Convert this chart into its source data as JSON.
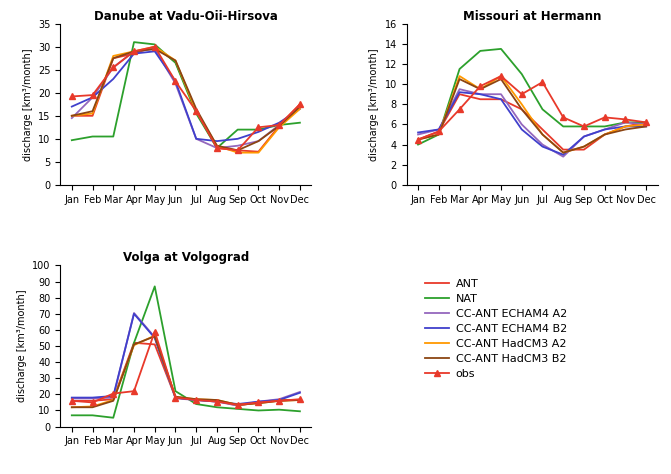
{
  "months": [
    "Jan",
    "Feb",
    "Mar",
    "Apr",
    "May",
    "Jun",
    "Jul",
    "Aug",
    "Sep",
    "Oct",
    "Nov",
    "Dec"
  ],
  "danube": {
    "title": "Danube at Vadu-Oii-Hirsova",
    "ylabel": "discharge [km³/month]",
    "ylim": [
      0,
      35
    ],
    "yticks": [
      0,
      5,
      10,
      15,
      20,
      25,
      30,
      35
    ],
    "ANT": [
      15.0,
      15.0,
      27.5,
      28.5,
      30.0,
      26.7,
      16.0,
      8.0,
      7.5,
      7.2,
      12.8,
      17.5
    ],
    "NAT": [
      9.7,
      10.5,
      10.5,
      31.0,
      30.5,
      26.5,
      15.5,
      8.0,
      12.0,
      12.0,
      13.0,
      13.5
    ],
    "CC_ECHAM4_A2": [
      14.5,
      19.0,
      25.5,
      29.0,
      29.5,
      22.0,
      10.0,
      8.0,
      8.5,
      9.5,
      13.0,
      17.0
    ],
    "CC_ECHAM4_B2": [
      17.0,
      19.0,
      23.0,
      28.5,
      29.0,
      22.5,
      10.0,
      9.5,
      10.0,
      11.5,
      13.5,
      16.5
    ],
    "CC_HadCM3_A2": [
      15.0,
      15.5,
      28.0,
      29.0,
      30.0,
      27.0,
      16.0,
      8.5,
      7.0,
      7.0,
      12.5,
      16.5
    ],
    "CC_HadCM3_B2": [
      15.0,
      16.0,
      27.5,
      29.0,
      29.5,
      27.0,
      16.5,
      8.5,
      7.5,
      9.5,
      12.8,
      17.0
    ],
    "obs": [
      19.2,
      19.5,
      25.5,
      29.0,
      30.0,
      22.5,
      16.0,
      8.0,
      7.5,
      12.5,
      13.0,
      17.5
    ]
  },
  "missouri": {
    "title": "Missouri at Hermann",
    "ylabel": "discharge [km³/month]",
    "ylim": [
      0,
      16
    ],
    "yticks": [
      0,
      2,
      4,
      6,
      8,
      10,
      12,
      14,
      16
    ],
    "ANT": [
      4.5,
      5.3,
      9.0,
      8.5,
      8.5,
      7.5,
      5.5,
      3.5,
      3.5,
      5.0,
      5.8,
      6.2
    ],
    "NAT": [
      4.0,
      5.0,
      11.5,
      13.3,
      13.5,
      11.0,
      7.5,
      5.8,
      5.8,
      5.8,
      6.2,
      6.2
    ],
    "CC_ECHAM4_A2": [
      5.0,
      5.5,
      9.5,
      9.0,
      9.0,
      6.0,
      4.0,
      2.8,
      4.8,
      5.5,
      6.2,
      6.0
    ],
    "CC_ECHAM4_B2": [
      5.2,
      5.5,
      9.2,
      9.0,
      8.5,
      5.5,
      3.8,
      3.0,
      4.8,
      5.5,
      5.8,
      5.8
    ],
    "CC_HadCM3_A2": [
      4.5,
      5.0,
      10.8,
      9.5,
      10.8,
      8.0,
      5.0,
      3.2,
      3.8,
      5.0,
      5.8,
      6.0
    ],
    "CC_HadCM3_B2": [
      4.5,
      5.0,
      10.5,
      9.5,
      10.5,
      7.5,
      5.0,
      3.2,
      3.8,
      5.0,
      5.5,
      5.8
    ],
    "obs": [
      4.5,
      5.3,
      7.5,
      9.8,
      10.8,
      9.0,
      10.2,
      6.7,
      5.8,
      6.7,
      6.5,
      6.2
    ]
  },
  "volga": {
    "title": "Volga at Volgograd",
    "ylabel": "discharge [km³/month]",
    "ylim": [
      0,
      100
    ],
    "yticks": [
      0,
      10,
      20,
      30,
      40,
      50,
      60,
      70,
      80,
      90,
      100
    ],
    "ANT": [
      16.0,
      16.0,
      17.0,
      52.0,
      51.0,
      18.0,
      16.5,
      16.0,
      13.0,
      15.0,
      16.5,
      16.5
    ],
    "NAT": [
      7.0,
      7.0,
      5.5,
      52.0,
      87.0,
      22.0,
      14.0,
      12.0,
      11.0,
      10.0,
      10.5,
      9.5
    ],
    "CC_ECHAM4_A2": [
      17.5,
      17.5,
      18.0,
      70.5,
      55.5,
      17.5,
      16.5,
      15.5,
      13.0,
      15.5,
      17.0,
      21.5
    ],
    "CC_ECHAM4_B2": [
      18.0,
      18.0,
      19.0,
      70.0,
      55.0,
      18.0,
      16.5,
      15.5,
      14.0,
      15.5,
      16.5,
      21.0
    ],
    "CC_HadCM3_A2": [
      12.0,
      12.5,
      16.5,
      50.5,
      56.5,
      18.5,
      17.0,
      16.5,
      13.5,
      14.5,
      16.0,
      16.5
    ],
    "CC_HadCM3_B2": [
      12.0,
      12.0,
      16.0,
      51.0,
      56.0,
      18.5,
      17.0,
      16.5,
      13.5,
      14.5,
      16.0,
      16.5
    ],
    "obs": [
      16.0,
      15.0,
      20.5,
      22.0,
      59.0,
      18.0,
      16.5,
      15.5,
      13.5,
      15.0,
      16.0,
      17.0
    ]
  },
  "colors": {
    "ANT": "#e8392a",
    "NAT": "#2ca02c",
    "CC_ECHAM4_A2": "#9467bd",
    "CC_ECHAM4_B2": "#4040cc",
    "CC_HadCM3_A2": "#ff9900",
    "CC_HadCM3_B2": "#8B4513",
    "obs": "#e8392a"
  },
  "legend_labels": {
    "ANT": "ANT",
    "NAT": "NAT",
    "CC_ECHAM4_A2": "CC-ANT ECHAM4 A2",
    "CC_ECHAM4_B2": "CC-ANT ECHAM4 B2",
    "CC_HadCM3_A2": "CC-ANT HadCM3 A2",
    "CC_HadCM3_B2": "CC-ANT HadCM3 B2",
    "obs": "obs"
  }
}
